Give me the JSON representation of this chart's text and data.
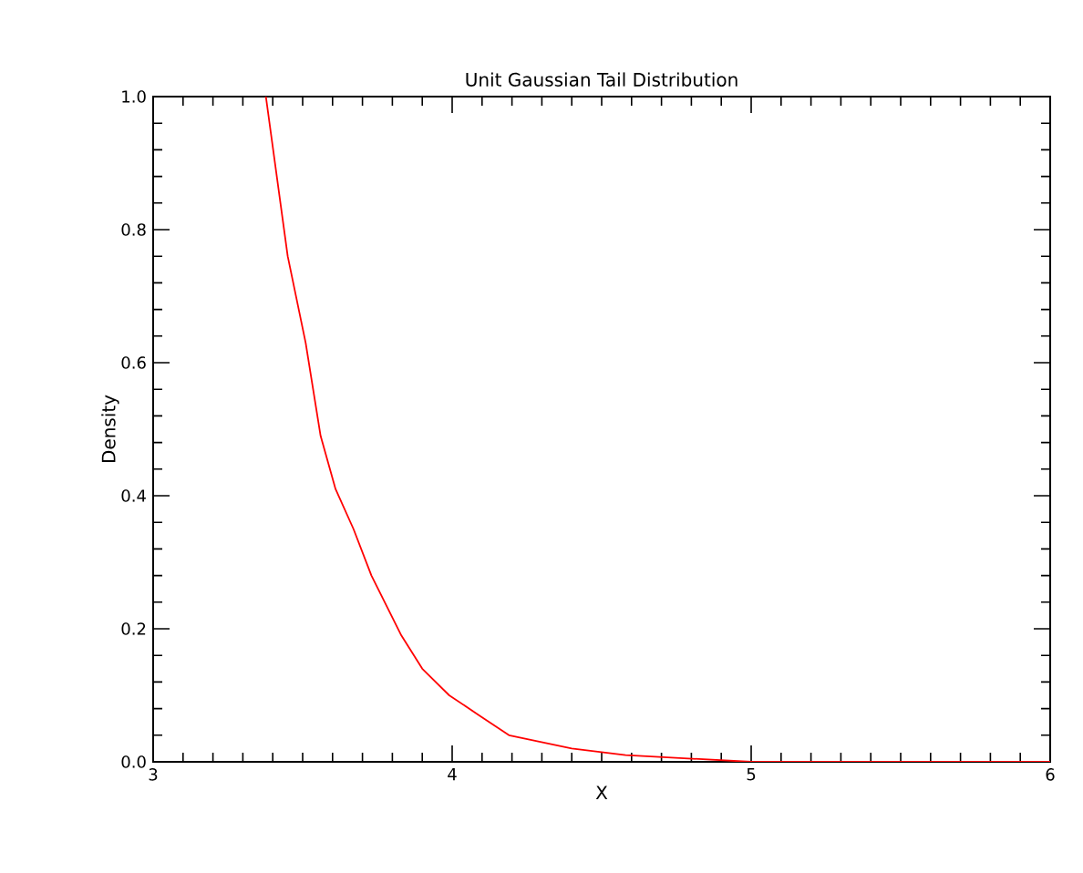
{
  "chart_data": {
    "type": "line",
    "title": "Unit Gaussian Tail Distribution",
    "xlabel": "X",
    "ylabel": "Density",
    "series": [
      {
        "color": "#ff0000",
        "x": [
          3.377,
          3.45,
          3.51,
          3.56,
          3.61,
          3.67,
          3.73,
          3.83,
          3.9,
          3.99,
          4.09,
          4.19,
          4.4,
          4.58,
          5.0,
          5.5,
          6.0
        ],
        "values": [
          1.0,
          0.76,
          0.63,
          0.49,
          0.41,
          0.35,
          0.28,
          0.19,
          0.14,
          0.1,
          0.07,
          0.04,
          0.02,
          0.01,
          0.0,
          0.0,
          0.0
        ]
      }
    ],
    "xlim": [
      3,
      6
    ],
    "ylim": [
      0,
      1
    ],
    "xticks": [
      3,
      4,
      5,
      6
    ],
    "yticks": [
      {
        "value": 0,
        "label": "0.0"
      },
      0.2,
      0.4,
      0.6,
      0.8,
      {
        "value": 1,
        "label": "1.0"
      }
    ],
    "grid": false,
    "marker": "none",
    "line_style": "solid"
  }
}
